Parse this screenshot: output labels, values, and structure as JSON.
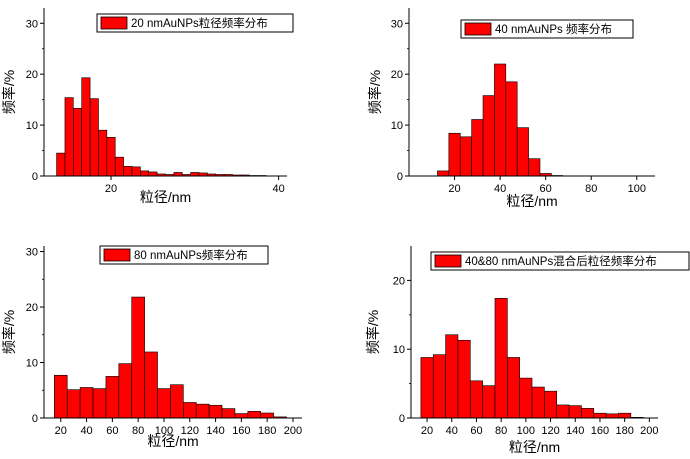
{
  "colors": {
    "bar": "#ff0000",
    "barStroke": "#000000",
    "axis": "#000000"
  },
  "chart_data": [
    {
      "type": "bar",
      "title": "20 nmAuNPs粒径频率分布",
      "legend": "20 nmAuNPs粒径频率分布",
      "legend_position": "top-right",
      "xlabel": "粒径/nm",
      "ylabel": "频率/%",
      "xlim": [
        12,
        41
      ],
      "ylim": [
        0,
        33
      ],
      "xticks": [
        20,
        40
      ],
      "yticks": [
        0,
        10,
        20,
        30
      ],
      "bin_width": 1,
      "x": [
        14,
        15,
        16,
        17,
        18,
        19,
        20,
        21,
        22,
        23,
        24,
        25,
        26,
        27,
        28,
        29,
        30,
        31,
        32,
        33,
        34,
        35,
        36,
        37,
        38
      ],
      "values": [
        4.5,
        15.4,
        13.3,
        19.3,
        15.2,
        9.0,
        7.6,
        3.7,
        1.9,
        1.8,
        1.0,
        0.8,
        0.4,
        0.3,
        0.7,
        0.3,
        0.7,
        0.6,
        0.4,
        0.3,
        0.3,
        0.2,
        0.2,
        0.1,
        0.1
      ]
    },
    {
      "type": "bar",
      "title": "40 nmAuNPs 频率分布",
      "legend": "40 nmAuNPs 频率分布",
      "legend_position": "top-right",
      "xlabel": "粒径/nm",
      "ylabel": "频率/%",
      "xlim": [
        0,
        108
      ],
      "ylim": [
        0,
        33
      ],
      "xticks": [
        20,
        40,
        60,
        80,
        100
      ],
      "yticks": [
        0,
        10,
        20,
        30
      ],
      "bin_width": 5,
      "x": [
        15,
        20,
        25,
        30,
        35,
        40,
        45,
        50,
        55,
        60,
        65
      ],
      "values": [
        1.0,
        8.4,
        7.7,
        11.1,
        15.8,
        22.0,
        18.5,
        9.5,
        3.4,
        0.5,
        0.1
      ]
    },
    {
      "type": "bar",
      "title": "80 nmAuNPs频率分布",
      "legend": "80 nmAuNPs频率分布",
      "legend_position": "top-right",
      "xlabel": "粒径/nm",
      "ylabel": "频率/%",
      "xlim": [
        7,
        207
      ],
      "ylim": [
        0,
        31
      ],
      "xticks": [
        20,
        40,
        60,
        80,
        100,
        120,
        140,
        160,
        180,
        200
      ],
      "yticks": [
        0,
        10,
        20,
        30
      ],
      "bin_width": 10,
      "x": [
        20,
        30,
        40,
        50,
        60,
        70,
        80,
        90,
        100,
        110,
        120,
        130,
        140,
        150,
        160,
        170,
        180,
        190
      ],
      "values": [
        7.7,
        5.1,
        5.5,
        5.3,
        7.5,
        9.8,
        21.8,
        11.9,
        5.3,
        6.0,
        2.8,
        2.5,
        2.3,
        1.7,
        0.8,
        1.2,
        0.9,
        0.2
      ]
    },
    {
      "type": "bar",
      "title": "40&80 nmAuNPs混合后粒径频率分布",
      "legend": "40&80 nmAuNPs混合后粒径频率分布",
      "legend_position": "top-right",
      "xlabel": "粒径/nm",
      "ylabel": "频率/%",
      "xlim": [
        7,
        207
      ],
      "ylim": [
        0,
        25
      ],
      "xticks": [
        20,
        40,
        60,
        80,
        100,
        120,
        140,
        160,
        180,
        200
      ],
      "yticks": [
        0,
        10,
        20
      ],
      "bin_width": 10,
      "x": [
        20,
        30,
        40,
        50,
        60,
        70,
        80,
        90,
        100,
        110,
        120,
        130,
        140,
        150,
        160,
        170,
        180,
        190
      ],
      "values": [
        8.8,
        9.2,
        12.1,
        11.3,
        5.4,
        4.7,
        17.4,
        8.8,
        5.8,
        4.5,
        3.9,
        1.9,
        1.8,
        1.4,
        0.7,
        0.6,
        0.7,
        0.1
      ]
    }
  ]
}
